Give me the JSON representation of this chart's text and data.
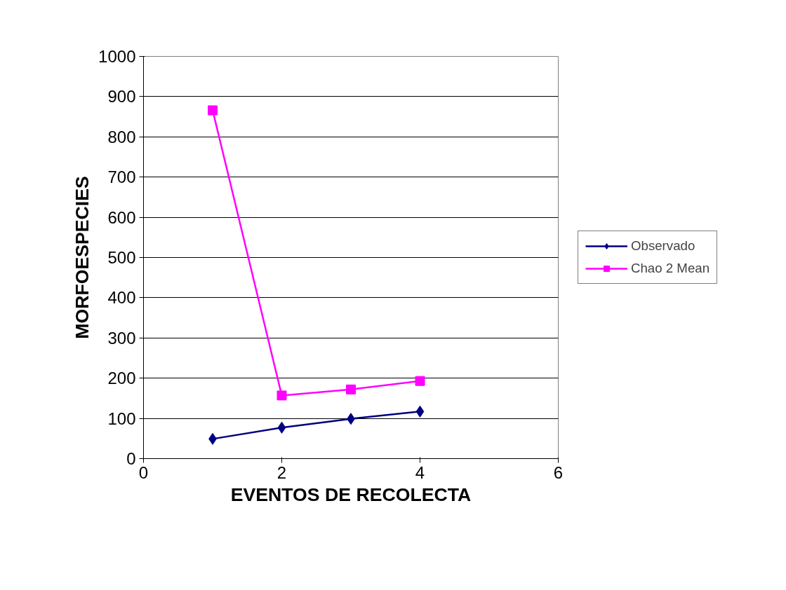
{
  "chart_data": {
    "type": "line",
    "xlabel": "EVENTOS DE RECOLECTA",
    "ylabel": "MORFOESPECIES",
    "x": [
      1,
      2,
      3,
      4
    ],
    "series": [
      {
        "name": "Observado",
        "color": "#000080",
        "marker": "diamond",
        "values": [
          49,
          77,
          99,
          117
        ]
      },
      {
        "name": "Chao 2 Mean",
        "color": "#ff00ff",
        "marker": "square",
        "values": [
          866,
          157,
          172,
          193
        ]
      }
    ],
    "xlim": [
      0,
      6
    ],
    "xticks": [
      0,
      2,
      4,
      6
    ],
    "ylim": [
      0,
      1000
    ],
    "yticks": [
      0,
      100,
      200,
      300,
      400,
      500,
      600,
      700,
      800,
      900,
      1000
    ],
    "grid": "y",
    "legend": "right",
    "line_style": "solid"
  }
}
